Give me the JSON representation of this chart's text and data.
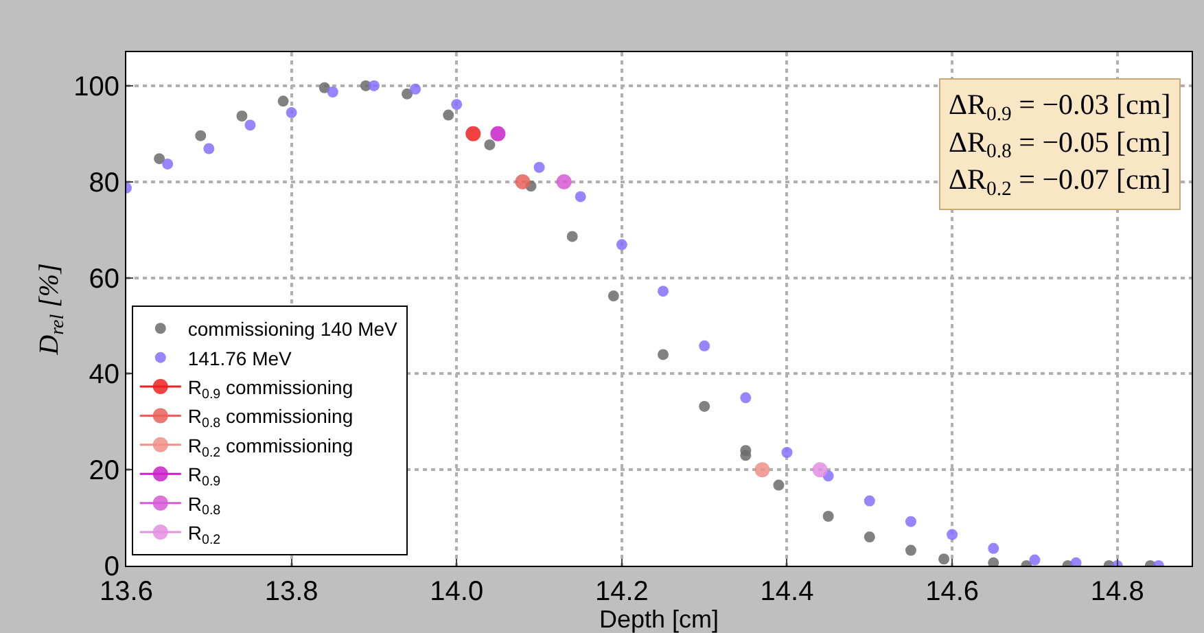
{
  "chart_data": {
    "type": "scatter",
    "xlabel": "Depth [cm]",
    "ylabel": "D$_{rel}$ [%]",
    "xlim": [
      13.6,
      14.89
    ],
    "xticks": [
      13.6,
      13.8,
      {
        "value": 14.0,
        "label": "14.0"
      },
      14.2,
      14.4,
      14.6,
      14.8
    ],
    "ylim": [
      0,
      107
    ],
    "yticks": [
      0,
      20,
      40,
      60,
      80,
      100
    ],
    "grid": true,
    "legend": "bottom left",
    "marker": "circle",
    "annotations": [
      "ΔR$_{0.9}$ = −0.03 [cm]",
      "ΔR$_{0.8}$ = −0.05 [cm]",
      "ΔR$_{0.2}$ = −0.07 [cm]"
    ],
    "series": [
      {
        "name": "commissioning 140 MeV",
        "color": "#6b6b6b",
        "x": [
          13.64,
          13.69,
          13.74,
          13.79,
          13.84,
          13.89,
          13.94,
          13.99,
          14.04,
          14.09,
          14.14,
          14.19,
          14.25,
          14.3,
          14.35,
          14.35,
          14.39,
          14.45,
          14.5,
          14.55,
          14.59,
          14.65,
          14.69,
          14.74,
          14.79,
          14.84
        ],
        "values": [
          84.8,
          89.6,
          93.7,
          96.8,
          99.6,
          100,
          98.3,
          93.9,
          87.7,
          79.1,
          68.6,
          56.2,
          44.0,
          33.2,
          24.0,
          23.0,
          16.8,
          10.3,
          6.0,
          3.2,
          1.4,
          0.6,
          0,
          0,
          0,
          0
        ]
      },
      {
        "name": "141.76 MeV",
        "color": "#8470ff",
        "x": [
          13.6,
          13.65,
          13.7,
          13.75,
          13.8,
          13.85,
          13.9,
          13.95,
          14.0,
          14.1,
          14.15,
          14.2,
          14.25,
          14.3,
          14.35,
          14.4,
          14.45,
          14.5,
          14.55,
          14.6,
          14.65,
          14.7,
          14.75,
          14.8,
          14.85
        ],
        "values": [
          78.7,
          83.7,
          86.9,
          91.8,
          94.4,
          98.7,
          100,
          99.3,
          96.1,
          83.0,
          76.9,
          66.9,
          57.2,
          45.8,
          35.0,
          23.6,
          18.7,
          13.5,
          9.2,
          6.5,
          3.6,
          1.2,
          0.6,
          0,
          0
        ]
      },
      {
        "name": "R$_{0.9}$ commissioning",
        "type": "line",
        "color": "#ee2020",
        "x": [
          14.02
        ],
        "values": [
          90
        ]
      },
      {
        "name": "R$_{0.8}$ commissioning",
        "type": "line",
        "color": "#e8625a",
        "x": [
          14.08
        ],
        "values": [
          80
        ]
      },
      {
        "name": "R$_{0.2}$ commissioning",
        "type": "line",
        "color": "#f09088",
        "x": [
          14.37
        ],
        "values": [
          20
        ]
      },
      {
        "name": "R$_{0.9}$",
        "type": "line",
        "color": "#c822c8",
        "x": [
          14.05
        ],
        "values": [
          90
        ]
      },
      {
        "name": "R$_{0.8}$",
        "type": "line",
        "color": "#d65ad6",
        "x": [
          14.13
        ],
        "values": [
          80
        ]
      },
      {
        "name": "R$_{0.2}$",
        "type": "line",
        "color": "#e48ee4",
        "x": [
          14.44
        ],
        "values": [
          20
        ]
      }
    ]
  }
}
